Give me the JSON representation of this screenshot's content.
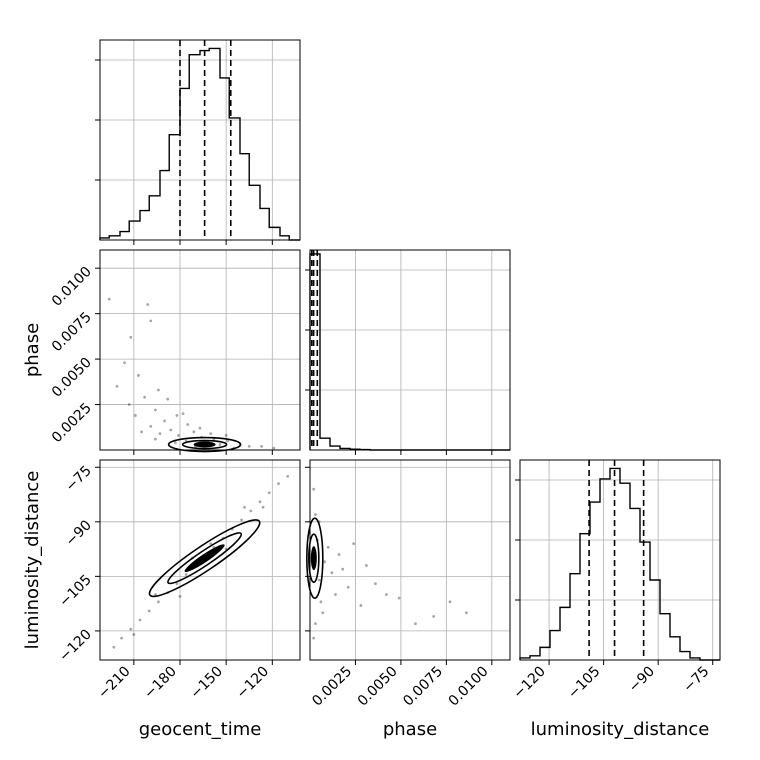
{
  "chart_data": [
    {
      "type": "histogram",
      "panel": "geocent_time",
      "grid": true,
      "xlim": [
        -232,
        -102
      ],
      "xticks": [
        -210,
        -180,
        -150,
        -120
      ],
      "x_tick_labels_visible": false,
      "y_tick_labels_visible": false,
      "bins": [
        {
          "x0": -232,
          "x1": -226,
          "count": 1
        },
        {
          "x0": -226,
          "x1": -219,
          "count": 2
        },
        {
          "x0": -219,
          "x1": -213,
          "count": 4
        },
        {
          "x0": -213,
          "x1": -206,
          "count": 9
        },
        {
          "x0": -206,
          "x1": -200,
          "count": 14
        },
        {
          "x0": -200,
          "x1": -193,
          "count": 21
        },
        {
          "x0": -193,
          "x1": -187,
          "count": 33
        },
        {
          "x0": -187,
          "x1": -180,
          "count": 50
        },
        {
          "x0": -180,
          "x1": -174,
          "count": 72
        },
        {
          "x0": -174,
          "x1": -167,
          "count": 88
        },
        {
          "x0": -167,
          "x1": -161,
          "count": 90
        },
        {
          "x0": -161,
          "x1": -154,
          "count": 91
        },
        {
          "x0": -154,
          "x1": -148,
          "count": 77
        },
        {
          "x0": -148,
          "x1": -141,
          "count": 58
        },
        {
          "x0": -141,
          "x1": -135,
          "count": 41
        },
        {
          "x0": -135,
          "x1": -128,
          "count": 26
        },
        {
          "x0": -128,
          "x1": -122,
          "count": 15
        },
        {
          "x0": -122,
          "x1": -115,
          "count": 6
        },
        {
          "x0": -115,
          "x1": -109,
          "count": 2
        },
        {
          "x0": -109,
          "x1": -102,
          "count": 0
        }
      ],
      "ylim": [
        0,
        95
      ],
      "quantiles": [
        -180,
        -164,
        -147
      ]
    },
    {
      "type": "scatter",
      "panel": "phase vs geocent_time",
      "grid": true,
      "xlim": [
        -232,
        -102
      ],
      "ylim": [
        0,
        0.011
      ],
      "xticks": [
        -210,
        -180,
        -150,
        -120
      ],
      "x_tick_labels_visible": false,
      "yticks": [
        0.0025,
        0.005,
        0.0075,
        0.01
      ],
      "ytick_labels": [
        "0.0025",
        "0.0050",
        "0.0075",
        "0.0100"
      ],
      "ylabel": "phase",
      "points": [
        [
          -226,
          0.0083
        ],
        [
          -212,
          0.0062
        ],
        [
          -199,
          0.0071
        ],
        [
          -201,
          0.008
        ],
        [
          -216,
          0.0048
        ],
        [
          -207,
          0.0041
        ],
        [
          -194,
          0.0033
        ],
        [
          -221,
          0.0035
        ],
        [
          -188,
          0.0028
        ],
        [
          -203,
          0.0029
        ],
        [
          -213,
          0.0025
        ],
        [
          -196,
          0.0022
        ],
        [
          -182,
          0.0019
        ],
        [
          -209,
          0.0019
        ],
        [
          -190,
          0.0016
        ],
        [
          -175,
          0.0014
        ],
        [
          -199,
          0.0013
        ],
        [
          -186,
          0.0011
        ],
        [
          -171,
          0.001
        ],
        [
          -193,
          0.0009
        ],
        [
          -181,
          0.0008
        ],
        [
          -166,
          0.0007
        ],
        [
          -158,
          0.0006
        ],
        [
          -149,
          0.0005
        ],
        [
          -176,
          0.0005
        ],
        [
          -162,
          0.0004
        ],
        [
          -141,
          0.0003
        ],
        [
          -154,
          0.0003
        ],
        [
          -135,
          0.0002
        ],
        [
          -127,
          0.0002
        ],
        [
          -119,
          0.0001
        ],
        [
          -170,
          0.0002
        ],
        [
          -145,
          0.0001
        ],
        [
          -183,
          0.0004
        ],
        [
          -196,
          0.0006
        ],
        [
          -160,
          0.0009
        ],
        [
          -167,
          0.0012
        ],
        [
          -150,
          0.0008
        ],
        [
          -205,
          0.001
        ],
        [
          -178,
          0.002
        ]
      ],
      "density_peak": [
        -164,
        0.0003
      ]
    },
    {
      "type": "histogram",
      "panel": "phase",
      "grid": true,
      "xlim": [
        0,
        0.011
      ],
      "xticks": [
        0.0025,
        0.005,
        0.0075,
        0.01
      ],
      "x_tick_labels_visible": false,
      "y_tick_labels_visible": false,
      "bins": [
        {
          "x0": 0.0,
          "x1": 0.00055,
          "count": 1000
        },
        {
          "x0": 0.00055,
          "x1": 0.0011,
          "count": 60
        },
        {
          "x0": 0.0011,
          "x1": 0.00165,
          "count": 20
        },
        {
          "x0": 0.00165,
          "x1": 0.0022,
          "count": 8
        },
        {
          "x0": 0.0022,
          "x1": 0.00275,
          "count": 4
        },
        {
          "x0": 0.00275,
          "x1": 0.0033,
          "count": 2
        },
        {
          "x0": 0.0033,
          "x1": 0.011,
          "count": 0
        }
      ],
      "ylim": [
        0,
        1020
      ],
      "quantiles": [
        0.0001,
        0.0002,
        0.0004
      ]
    },
    {
      "type": "scatter",
      "panel": "luminosity_distance vs geocent_time",
      "grid": true,
      "xlim": [
        -232,
        -102
      ],
      "ylim": [
        -128,
        -73
      ],
      "xticks": [
        -210,
        -180,
        -150,
        -120
      ],
      "xtick_labels": [
        "−210",
        "−180",
        "−150",
        "−120"
      ],
      "yticks": [
        -120,
        -105,
        -90,
        -75
      ],
      "ytick_labels": [
        "−120",
        "−105",
        "−90",
        "−75"
      ],
      "xlabel": "geocent_time",
      "ylabel": "luminosity_distance",
      "points": [
        [
          -223,
          -124.5
        ],
        [
          -218,
          -122.0
        ],
        [
          -212,
          -119.5
        ],
        [
          -206,
          -117.0
        ],
        [
          -200,
          -114.5
        ],
        [
          -194,
          -112.0
        ],
        [
          -188,
          -109.5
        ],
        [
          -182,
          -107.0
        ],
        [
          -176,
          -104.5
        ],
        [
          -170,
          -102.0
        ],
        [
          -164,
          -99.5
        ],
        [
          -158,
          -97.0
        ],
        [
          -152,
          -94.5
        ],
        [
          -146,
          -92.0
        ],
        [
          -140,
          -89.5
        ],
        [
          -134,
          -87.0
        ],
        [
          -128,
          -84.5
        ],
        [
          -122,
          -82.0
        ],
        [
          -116,
          -79.5
        ],
        [
          -110,
          -77.5
        ],
        [
          -210,
          -121.0
        ],
        [
          -196,
          -110.0
        ],
        [
          -180,
          -110.5
        ],
        [
          -160,
          -96.0
        ],
        [
          -150,
          -97.5
        ],
        [
          -138,
          -86.0
        ],
        [
          -126,
          -86.0
        ],
        [
          -172,
          -100.0
        ]
      ],
      "density_peak": [
        -164,
        -100
      ]
    },
    {
      "type": "scatter",
      "panel": "luminosity_distance vs phase",
      "grid": true,
      "xlim": [
        0,
        0.011
      ],
      "ylim": [
        -128,
        -73
      ],
      "xticks": [
        0.0025,
        0.005,
        0.0075,
        0.01
      ],
      "xtick_labels": [
        "0.0025",
        "0.0050",
        "0.0075",
        "0.0100"
      ],
      "yticks": [
        -120,
        -105,
        -90,
        -75
      ],
      "y_tick_labels_visible": false,
      "xlabel": "phase",
      "points": [
        [
          0.0002,
          -81
        ],
        [
          0.0003,
          -88
        ],
        [
          0.0004,
          -95
        ],
        [
          0.0005,
          -106
        ],
        [
          0.0006,
          -112
        ],
        [
          0.0008,
          -101
        ],
        [
          0.001,
          -97
        ],
        [
          0.0012,
          -104
        ],
        [
          0.0014,
          -110
        ],
        [
          0.0016,
          -99
        ],
        [
          0.0018,
          -103
        ],
        [
          0.0021,
          -108
        ],
        [
          0.0024,
          -96
        ],
        [
          0.0028,
          -113
        ],
        [
          0.0031,
          -102
        ],
        [
          0.0036,
          -107
        ],
        [
          0.0042,
          -110
        ],
        [
          0.0049,
          -111
        ],
        [
          0.0058,
          -118
        ],
        [
          0.0068,
          -116
        ],
        [
          0.0077,
          -112
        ],
        [
          0.0086,
          -115
        ],
        [
          0.0003,
          -118
        ],
        [
          0.0002,
          -122
        ],
        [
          0.0005,
          -90
        ],
        [
          0.0007,
          -115
        ]
      ],
      "density_peak": [
        0.0001,
        -100
      ]
    },
    {
      "type": "histogram",
      "panel": "luminosity_distance",
      "grid": true,
      "xlim": [
        -128,
        -73
      ],
      "xticks": [
        -120,
        -105,
        -90,
        -75
      ],
      "xtick_labels": [
        "−120",
        "−105",
        "−90",
        "−75"
      ],
      "xlabel": "luminosity_distance",
      "y_tick_labels_visible": false,
      "bins": [
        {
          "x0": -128,
          "x1": -125.25,
          "count": 1
        },
        {
          "x0": -125.25,
          "x1": -122.5,
          "count": 2
        },
        {
          "x0": -122.5,
          "x1": -119.75,
          "count": 6
        },
        {
          "x0": -119.75,
          "x1": -117,
          "count": 14
        },
        {
          "x0": -117,
          "x1": -114.25,
          "count": 25
        },
        {
          "x0": -114.25,
          "x1": -111.5,
          "count": 41
        },
        {
          "x0": -111.5,
          "x1": -108.75,
          "count": 60
        },
        {
          "x0": -108.75,
          "x1": -106,
          "count": 75
        },
        {
          "x0": -106,
          "x1": -103.25,
          "count": 86
        },
        {
          "x0": -103.25,
          "x1": -100.5,
          "count": 91
        },
        {
          "x0": -100.5,
          "x1": -97.75,
          "count": 84
        },
        {
          "x0": -97.75,
          "x1": -95,
          "count": 72
        },
        {
          "x0": -95,
          "x1": -92.25,
          "count": 56
        },
        {
          "x0": -92.25,
          "x1": -89.5,
          "count": 38
        },
        {
          "x0": -89.5,
          "x1": -86.75,
          "count": 22
        },
        {
          "x0": -86.75,
          "x1": -84,
          "count": 11
        },
        {
          "x0": -84,
          "x1": -81.25,
          "count": 4
        },
        {
          "x0": -81.25,
          "x1": -78.5,
          "count": 1
        },
        {
          "x0": -78.5,
          "x1": -75.75,
          "count": 0
        },
        {
          "x0": -75.75,
          "x1": -73,
          "count": 0
        }
      ],
      "ylim": [
        0,
        95
      ],
      "quantiles": [
        -109,
        -102,
        -94
      ]
    }
  ]
}
